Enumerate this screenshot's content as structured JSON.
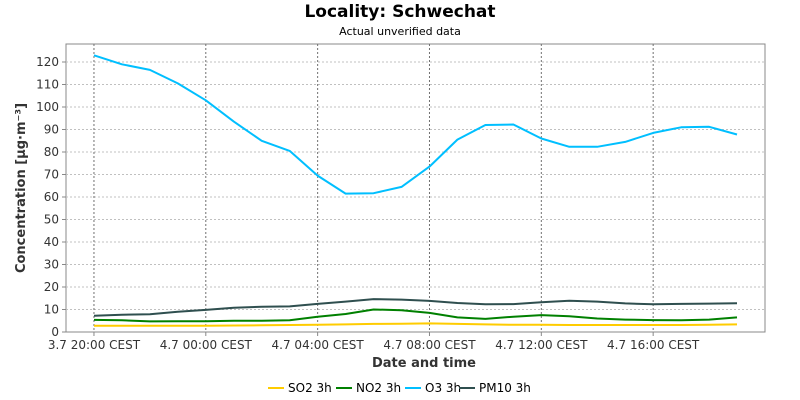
{
  "chart_data": {
    "type": "line",
    "title": "Locality: Schwechat",
    "subtitle": "Actual unverified data",
    "xlabel": "Date and time",
    "ylabel": "Concentration [µg·m⁻³]",
    "ylim": [
      0,
      128
    ],
    "yticks": [
      0,
      10,
      20,
      30,
      40,
      50,
      60,
      70,
      80,
      90,
      100,
      110,
      120
    ],
    "xlim": [
      "2024-07-03 19:00",
      "2024-07-04 20:00"
    ],
    "xticks": [
      {
        "value": "2024-07-03 20:00",
        "label": "3.7 20:00 CEST"
      },
      {
        "value": "2024-07-04 00:00",
        "label": "4.7 00:00 CEST"
      },
      {
        "value": "2024-07-04 04:00",
        "label": "4.7 04:00 CEST"
      },
      {
        "value": "2024-07-04 08:00",
        "label": "4.7 08:00 CEST"
      },
      {
        "value": "2024-07-04 12:00",
        "label": "4.7 12:00 CEST"
      },
      {
        "value": "2024-07-04 16:00",
        "label": "4.7 16:00 CEST"
      }
    ],
    "grid": true,
    "legend_position": "bottom",
    "x": [
      "2024-07-03 20:00",
      "2024-07-03 21:00",
      "2024-07-03 22:00",
      "2024-07-03 23:00",
      "2024-07-04 00:00",
      "2024-07-04 01:00",
      "2024-07-04 02:00",
      "2024-07-04 03:00",
      "2024-07-04 04:00",
      "2024-07-04 05:00",
      "2024-07-04 06:00",
      "2024-07-04 07:00",
      "2024-07-04 08:00",
      "2024-07-04 09:00",
      "2024-07-04 10:00",
      "2024-07-04 11:00",
      "2024-07-04 12:00",
      "2024-07-04 13:00",
      "2024-07-04 14:00",
      "2024-07-04 15:00",
      "2024-07-04 16:00",
      "2024-07-04 17:00",
      "2024-07-04 18:00",
      "2024-07-04 19:00"
    ],
    "series": [
      {
        "name": "SO2 3h",
        "color": "#ffcc00",
        "values": [
          2.8,
          2.8,
          2.8,
          2.8,
          2.8,
          2.9,
          3.0,
          3.1,
          3.2,
          3.4,
          3.6,
          3.7,
          3.8,
          3.6,
          3.4,
          3.2,
          3.2,
          3.1,
          3.1,
          3.1,
          3.1,
          3.1,
          3.2,
          3.4
        ]
      },
      {
        "name": "NO2 3h",
        "color": "#008000",
        "values": [
          5.4,
          5.2,
          4.7,
          4.8,
          4.8,
          5.0,
          5.0,
          5.2,
          6.8,
          8.0,
          10.0,
          9.7,
          8.5,
          6.5,
          5.8,
          6.8,
          7.5,
          7.0,
          6.0,
          5.5,
          5.3,
          5.2,
          5.5,
          6.5
        ]
      },
      {
        "name": "O3 3h",
        "color": "#00bfff",
        "values": [
          123,
          119,
          116.5,
          110.5,
          103,
          93.5,
          85,
          80.5,
          69.5,
          61.5,
          61.7,
          64.5,
          73.5,
          85.5,
          92,
          92.2,
          86,
          82.3,
          82.3,
          84.5,
          88.5,
          91,
          91.2,
          87.8
        ]
      },
      {
        "name": "PM10 3h",
        "color": "#2f4f4f",
        "values": [
          7.2,
          7.7,
          7.9,
          9.0,
          9.8,
          10.8,
          11.2,
          11.4,
          12.5,
          13.5,
          14.6,
          14.4,
          13.8,
          12.9,
          12.3,
          12.4,
          13.2,
          13.9,
          13.5,
          12.7,
          12.3,
          12.5,
          12.6,
          12.8
        ]
      }
    ]
  }
}
